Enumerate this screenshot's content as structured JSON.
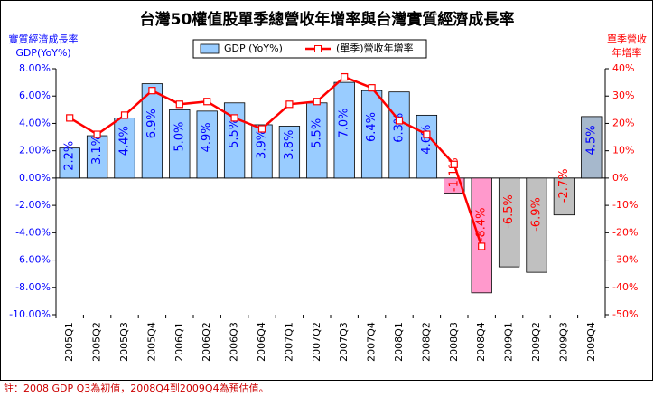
{
  "chart_data": {
    "type": "bar_line",
    "title": "台灣50權值股單季總營收年增率與台灣實質經濟成長率",
    "y_label": [
      "實質經濟成長率",
      "GDP(YoY%)"
    ],
    "y2_label": [
      "單季營收",
      "年增率"
    ],
    "note": "註：2008 GDP Q3為初值，2008Q4到2009Q4為預估值。",
    "categories": [
      "2005Q1",
      "2005Q2",
      "2005Q3",
      "2005Q4",
      "2006Q1",
      "2006Q2",
      "2006Q3",
      "2006Q4",
      "2007Q1",
      "2007Q2",
      "2007Q3",
      "2007Q4",
      "2008Q1",
      "2008Q2",
      "2008Q3",
      "2008Q4",
      "2009Q1",
      "2009Q2",
      "2009Q3",
      "2009Q4"
    ],
    "series": [
      {
        "name": "GDP (YoY%)",
        "color": "#99ccff",
        "type": "bar",
        "colors": [
          "#99ccff",
          "#99ccff",
          "#99ccff",
          "#99ccff",
          "#99ccff",
          "#99ccff",
          "#99ccff",
          "#99ccff",
          "#99ccff",
          "#99ccff",
          "#99ccff",
          "#99ccff",
          "#99ccff",
          "#99ccff",
          "#ff99cc",
          "#ff99cc",
          "#c0c0c0",
          "#c0c0c0",
          "#c0c0c0",
          "#a6b8cc"
        ],
        "label_colors": [
          "#0000ff",
          "#0000ff",
          "#0000ff",
          "#0000ff",
          "#0000ff",
          "#0000ff",
          "#0000ff",
          "#0000ff",
          "#0000ff",
          "#0000ff",
          "#0000ff",
          "#0000ff",
          "#0000ff",
          "#0000ff",
          "#ff0000",
          "#ff0000",
          "#ff0000",
          "#ff0000",
          "#ff0000",
          "#0000ff"
        ],
        "values": [
          2.2,
          3.1,
          4.4,
          6.9,
          5.0,
          4.9,
          5.5,
          3.9,
          3.8,
          5.5,
          7.0,
          6.4,
          6.3,
          4.6,
          -1.1,
          -8.4,
          -6.5,
          -6.9,
          -2.7,
          4.5
        ],
        "value_labels": [
          "2.2%",
          "3.1%",
          "4.4%",
          "6.9%",
          "5.0%",
          "4.9%",
          "5.5%",
          "3.9%",
          "3.8%",
          "5.5%",
          "7.0%",
          "6.4%",
          "6.3%",
          "4.6%",
          "-1.1%",
          "-8.4%",
          "-6.5%",
          "-6.9%",
          "-2.7%",
          "4.5%"
        ]
      },
      {
        "name": "(單季)營收年增率",
        "color": "#ff0000",
        "type": "line",
        "axis": "y2",
        "values": [
          22,
          16,
          23,
          32,
          27,
          28,
          22,
          18,
          27,
          28,
          37,
          33,
          21,
          16,
          5,
          -25,
          null,
          null,
          null,
          null
        ]
      }
    ],
    "ylim": [
      -10,
      8
    ],
    "yticks": [
      {
        "value": 8,
        "label": "8.00%"
      },
      {
        "value": 6,
        "label": "6.00%"
      },
      {
        "value": 4,
        "label": "4.00%"
      },
      {
        "value": 2,
        "label": "2.00%"
      },
      {
        "value": 0,
        "label": "0.00%"
      },
      {
        "value": -2,
        "label": "-2.00%"
      },
      {
        "value": -4,
        "label": "-4.00%"
      },
      {
        "value": -6,
        "label": "-6.00%"
      },
      {
        "value": -8,
        "label": "-8.00%"
      },
      {
        "value": -10,
        "label": "-10.00%"
      }
    ],
    "y2lim": [
      -50,
      40
    ],
    "y2ticks": [
      {
        "value": 40,
        "label": "40%"
      },
      {
        "value": 30,
        "label": "30%"
      },
      {
        "value": 20,
        "label": "20%"
      },
      {
        "value": 10,
        "label": "10%"
      },
      {
        "value": 0,
        "label": "0%"
      },
      {
        "value": -10,
        "label": "-10%"
      },
      {
        "value": -20,
        "label": "-20%"
      },
      {
        "value": -30,
        "label": "-30%"
      },
      {
        "value": -40,
        "label": "-40%"
      },
      {
        "value": -50,
        "label": "-50%"
      }
    ]
  }
}
